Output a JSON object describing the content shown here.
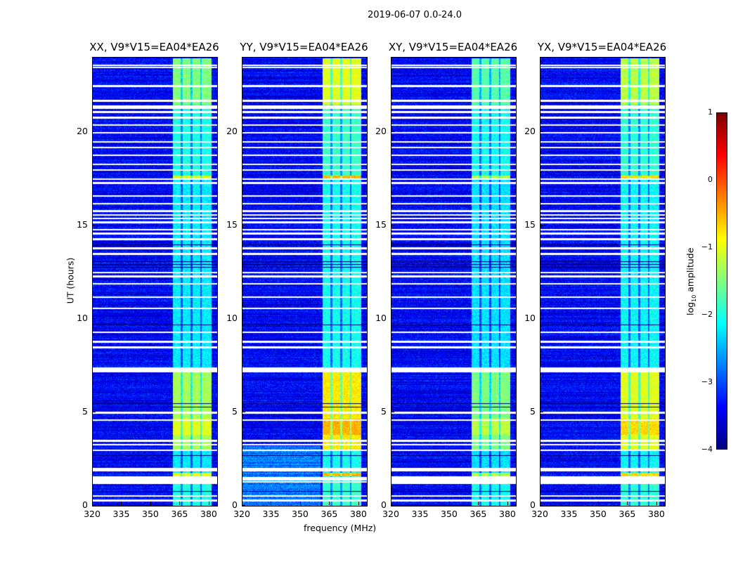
{
  "chart_data": {
    "type": "heatmap",
    "title": "2019-06-07 0.0-24.0",
    "xlabel": "frequency (MHz)",
    "ylabel": "UT (hours)",
    "xlim": [
      320,
      384
    ],
    "ylim": [
      0,
      24
    ],
    "xticks": [
      320,
      335,
      350,
      365,
      380
    ],
    "yticks": [
      0,
      5,
      10,
      15,
      20
    ],
    "panels": [
      {
        "title": "XX, V9*V15=EA04*EA26",
        "rfi_boost": 0.0
      },
      {
        "title": "YY, V9*V15=EA04*EA26",
        "rfi_boost": 0.5
      },
      {
        "title": "XY, V9*V15=EA04*EA26",
        "rfi_boost": -0.2
      },
      {
        "title": "YX, V9*V15=EA04*EA26",
        "rfi_boost": 0.3
      }
    ],
    "background_log_amplitude": -3.4,
    "rfi_band_mhz": [
      361,
      381
    ],
    "rfi_band_segments_hours": [
      {
        "from": 0,
        "to": 1.6,
        "level": -2.0
      },
      {
        "from": 1.6,
        "to": 1.8,
        "level": -1.0
      },
      {
        "from": 1.8,
        "to": 3.0,
        "level": -2.2
      },
      {
        "from": 3.0,
        "to": 3.8,
        "level": -1.3
      },
      {
        "from": 3.8,
        "to": 4.7,
        "level": -1.0
      },
      {
        "from": 4.7,
        "to": 7.4,
        "level": -1.3
      },
      {
        "from": 7.4,
        "to": 17.5,
        "level": -2.2
      },
      {
        "from": 17.5,
        "to": 17.7,
        "level": -1.0
      },
      {
        "from": 17.7,
        "to": 21.5,
        "level": -2.0
      },
      {
        "from": 21.5,
        "to": 24,
        "level": -1.5
      }
    ],
    "flagged_hours": [
      0.3,
      0.55,
      1.3,
      1.4,
      1.5,
      1.9,
      2.0,
      3.0,
      3.3,
      3.5,
      4.6,
      5.0,
      7.2,
      7.3,
      7.4,
      8.5,
      8.8,
      9.3,
      10.6,
      11.2,
      11.9,
      12.3,
      12.5,
      13.5,
      13.8,
      14.3,
      14.6,
      14.8,
      15.2,
      15.4,
      15.6,
      15.8,
      16.2,
      16.6,
      17.3,
      17.5,
      18.0,
      18.3,
      18.8,
      19.2,
      19.5,
      20.0,
      20.4,
      20.8,
      21.1,
      21.3,
      21.4,
      21.7,
      22.5,
      23.5,
      23.6
    ],
    "dark_hours": [
      0.8,
      2.7,
      5.3,
      5.5,
      9.7,
      12.8,
      12.95,
      13.1,
      14.0
    ],
    "colorbar": {
      "label": "log10 amplitude",
      "label_main": "log",
      "label_sub": "10",
      "label_rest": " amplitude",
      "range": [
        -4,
        1
      ],
      "ticks": [
        1,
        0,
        -1,
        -2,
        -3,
        -4
      ],
      "tick_labels": [
        "1",
        "0",
        "−1",
        "−2",
        "−3",
        "−4"
      ],
      "colormap": "jet"
    }
  }
}
